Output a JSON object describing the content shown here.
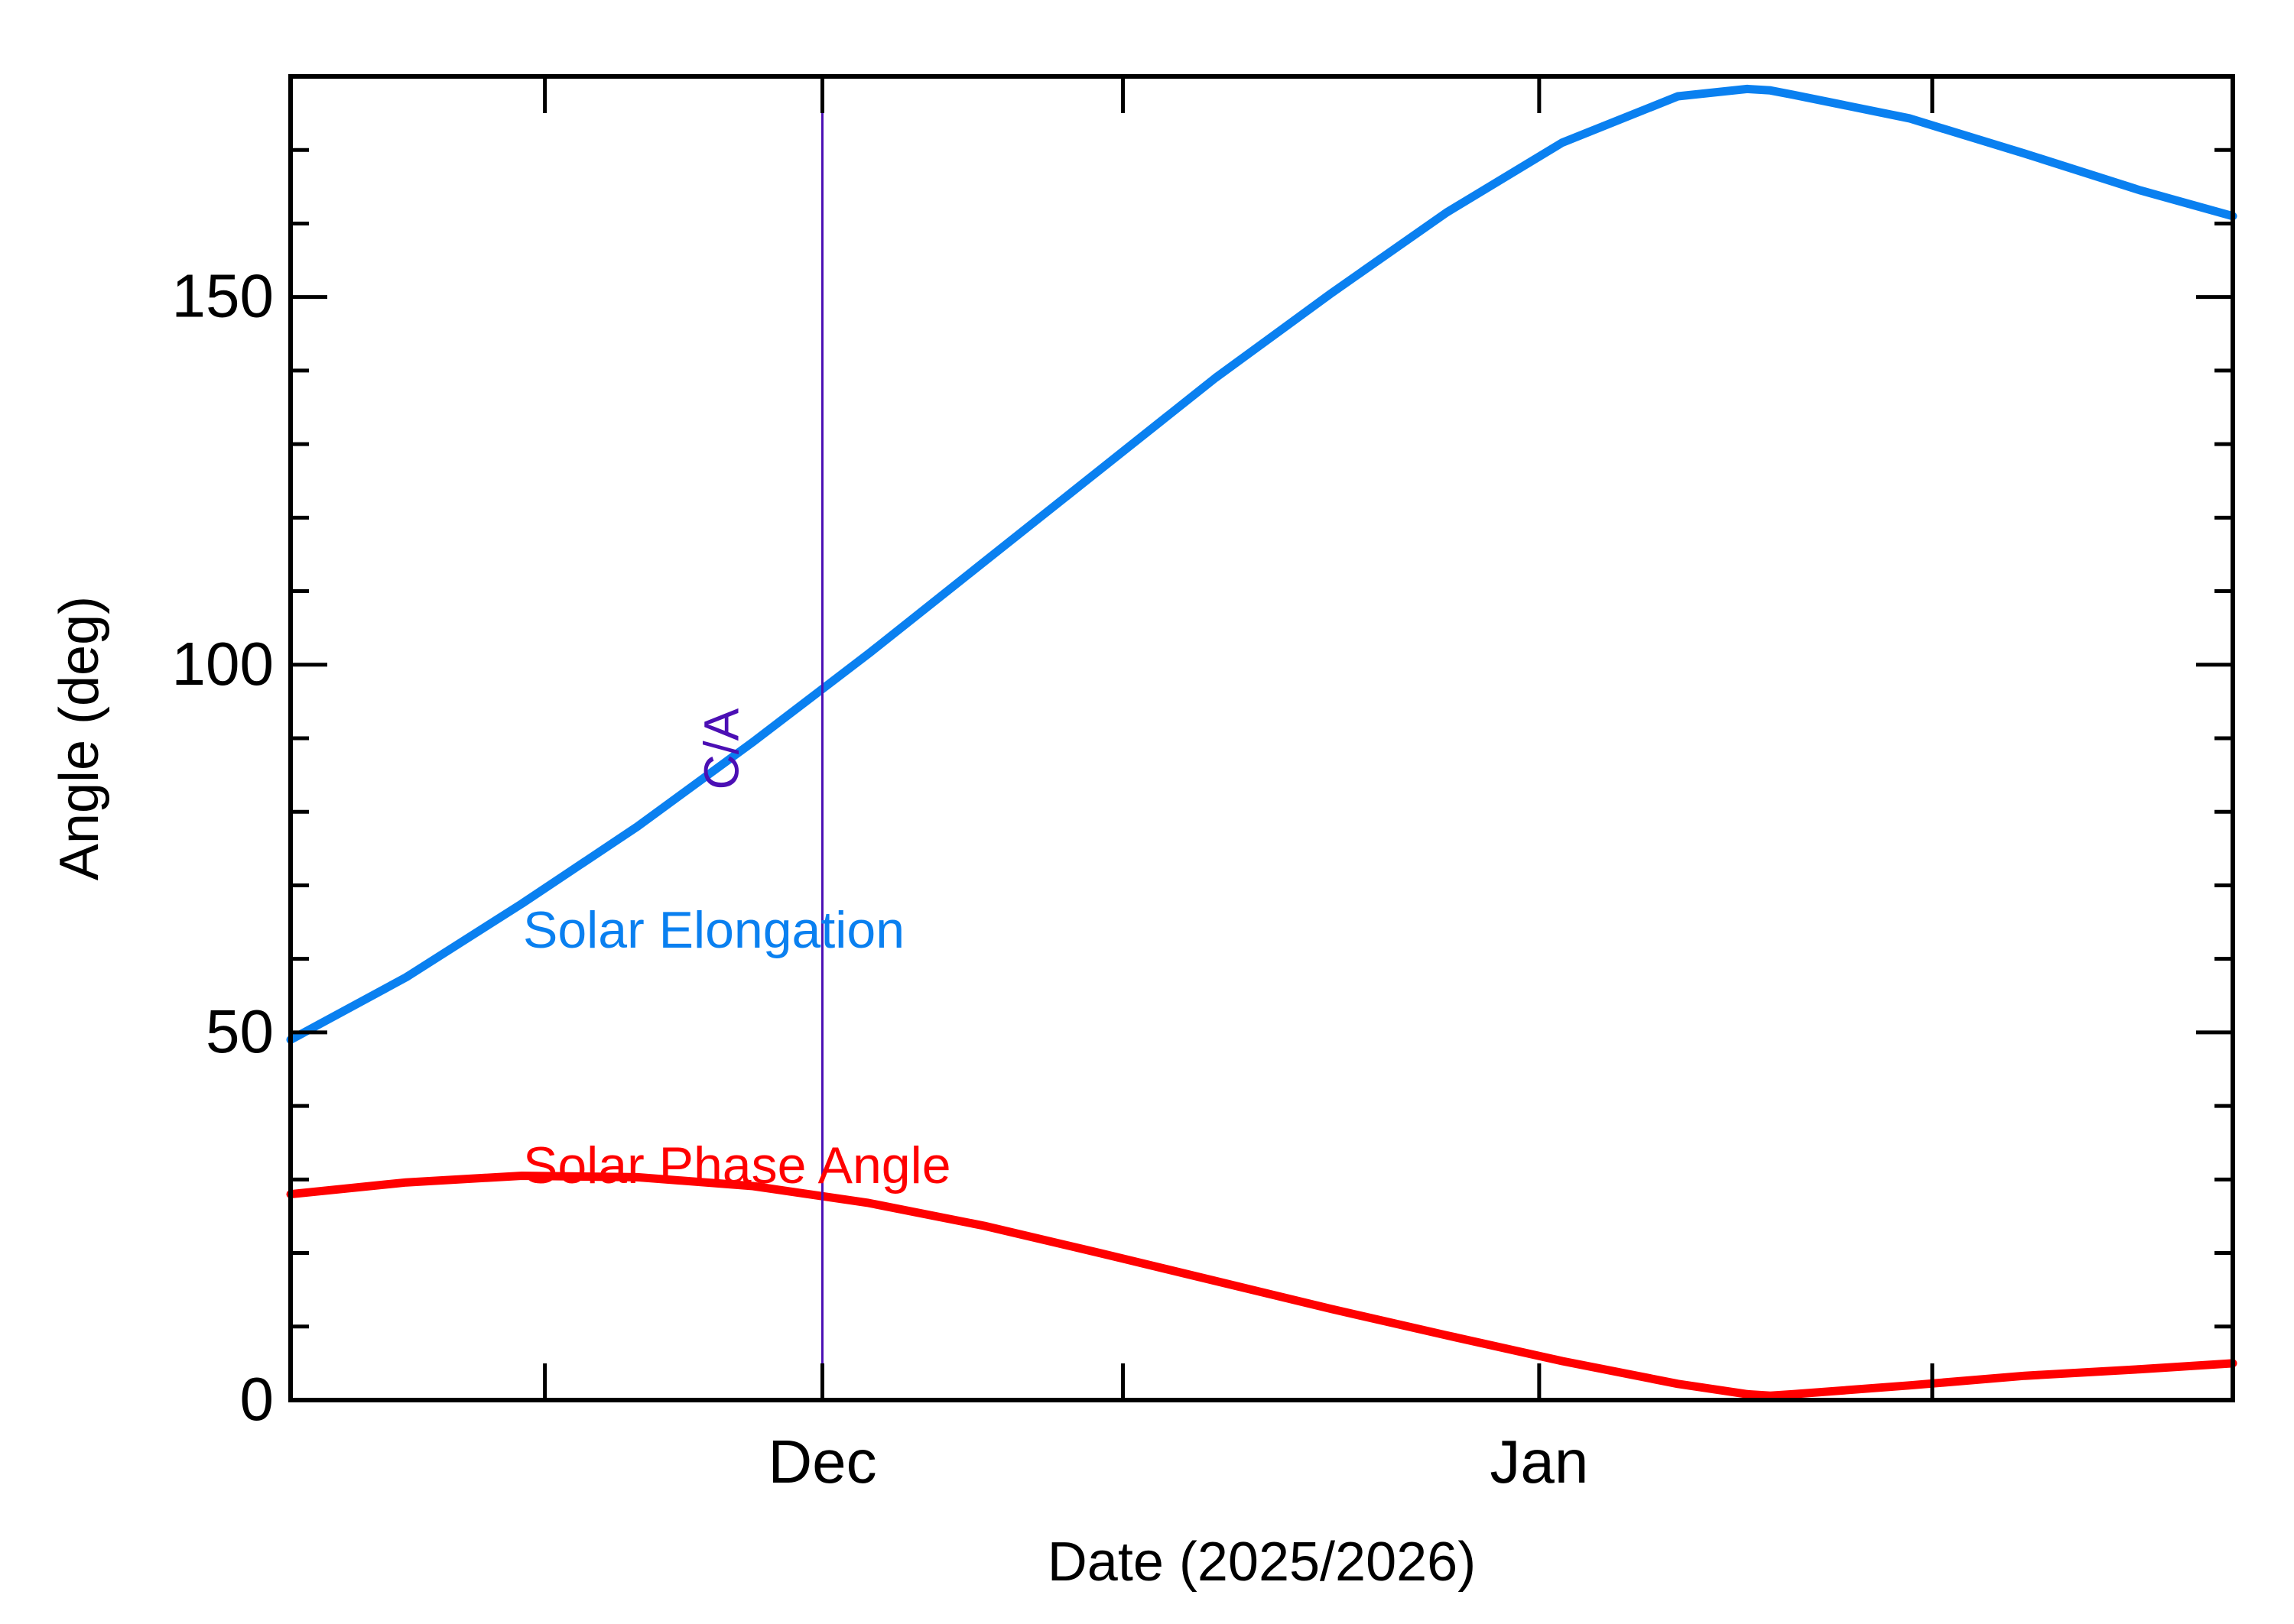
{
  "chart_data": {
    "type": "line",
    "xlabel": "Date (2025/2026)",
    "ylabel": "Angle (deg)",
    "xlim": [
      "2025-11-08",
      "2026-01-31"
    ],
    "ylim": [
      0,
      180
    ],
    "xticks": [
      {
        "label": "",
        "date": "2025-11-19"
      },
      {
        "label": "Dec",
        "date": "2025-12-01"
      },
      {
        "label": "",
        "date": "2025-12-14"
      },
      {
        "label": "Jan",
        "date": "2026-01-01"
      },
      {
        "label": "",
        "date": "2026-01-18"
      }
    ],
    "yticks": [
      0,
      50,
      100,
      150
    ],
    "closest_approach": {
      "label": "C/A",
      "date": "2025-12-01"
    },
    "series": [
      {
        "name": "Solar Elongation",
        "color": "#0a80f0",
        "x": [
          "2025-11-08",
          "2025-11-13",
          "2025-11-18",
          "2025-11-23",
          "2025-11-28",
          "2025-12-03",
          "2025-12-08",
          "2025-12-13",
          "2025-12-18",
          "2025-12-23",
          "2025-12-28",
          "2026-01-02",
          "2026-01-07",
          "2026-01-10",
          "2026-01-11",
          "2026-01-12",
          "2026-01-17",
          "2026-01-22",
          "2026-01-27",
          "2026-01-31"
        ],
        "values": [
          49,
          57.5,
          67.5,
          78,
          89.5,
          101.5,
          114,
          126.5,
          139,
          150.5,
          161.5,
          171,
          177.3,
          178.3,
          178.1,
          177.5,
          174.3,
          169.5,
          164.5,
          161
        ]
      },
      {
        "name": "Solar Phase Angle",
        "color": "#ff0000",
        "x": [
          "2025-11-08",
          "2025-11-13",
          "2025-11-18",
          "2025-11-23",
          "2025-11-28",
          "2025-12-03",
          "2025-12-08",
          "2025-12-13",
          "2025-12-18",
          "2025-12-23",
          "2025-12-28",
          "2026-01-02",
          "2026-01-07",
          "2026-01-10",
          "2026-01-11",
          "2026-01-12",
          "2026-01-17",
          "2026-01-22",
          "2026-01-27",
          "2026-01-31"
        ],
        "values": [
          28,
          29.6,
          30.5,
          30.3,
          29.1,
          26.8,
          23.7,
          20,
          16.2,
          12.4,
          8.8,
          5.3,
          2.2,
          0.8,
          0.6,
          0.8,
          2,
          3.3,
          4.2,
          5
        ]
      }
    ]
  }
}
